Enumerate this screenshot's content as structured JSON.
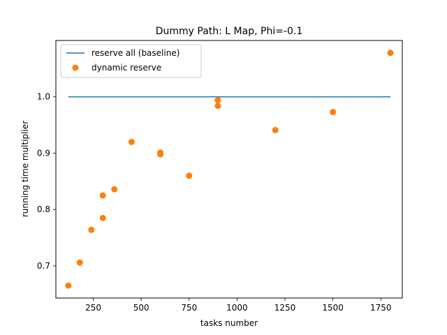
{
  "chart_data": {
    "type": "scatter",
    "title": "Dummy Path: L Map, Phi=-0.1",
    "xlabel": "tasks number",
    "ylabel": "running time multiplier",
    "xlim": [
      55,
      1862
    ],
    "ylim": [
      0.643,
      1.1
    ],
    "xticks": [
      250,
      500,
      750,
      1000,
      1250,
      1500,
      1750
    ],
    "yticks": [
      0.7,
      0.8,
      0.9,
      1.0
    ],
    "xtick_labels": [
      "250",
      "500",
      "750",
      "1000",
      "1250",
      "1500",
      "1750"
    ],
    "ytick_labels": [
      "0.7",
      "0.8",
      "0.9",
      "1.0"
    ],
    "grid": false,
    "legend_position": "top-left",
    "series": [
      {
        "name": "reserve all (baseline)",
        "kind": "line",
        "color": "#1f77b4",
        "x": [
          120,
          1800
        ],
        "y": [
          1.0,
          1.0
        ]
      },
      {
        "name": "dynamic reserve",
        "kind": "scatter",
        "color": "#ff7f0e",
        "x": [
          120,
          180,
          240,
          300,
          300,
          360,
          450,
          600,
          600,
          750,
          900,
          900,
          1200,
          1500,
          1800
        ],
        "y": [
          0.665,
          0.706,
          0.764,
          0.785,
          0.825,
          0.836,
          0.92,
          0.898,
          0.901,
          0.86,
          0.984,
          0.994,
          0.941,
          0.973,
          1.078
        ]
      }
    ]
  }
}
